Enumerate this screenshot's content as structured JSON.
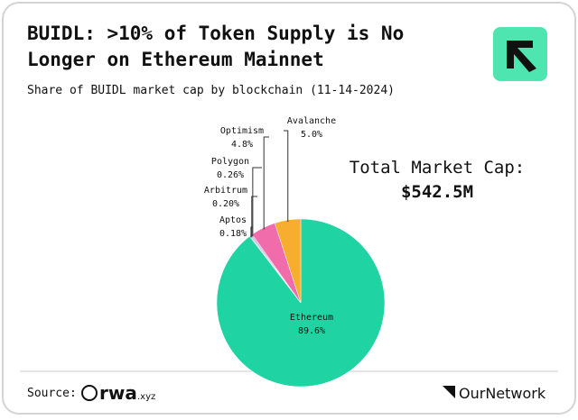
{
  "chart_data": {
    "type": "pie",
    "title_lines": [
      "BUIDL: >10% of Token Supply is No",
      "Longer on Ethereum Mainnet"
    ],
    "subtitle": "Share of BUIDL market cap by blockchain (11-14-2024)",
    "categories": [
      "Ethereum",
      "Aptos",
      "Arbitrum",
      "Polygon",
      "Optimism",
      "Avalanche"
    ],
    "values": [
      89.6,
      0.18,
      0.2,
      0.26,
      4.8,
      5.0
    ],
    "value_labels": [
      "89.6%",
      "0.18%",
      "0.20%",
      "0.26%",
      "4.8%",
      "5.0%"
    ],
    "colors": [
      "#20d3a2",
      "#b9c4cc",
      "#9fb0bd",
      "#c9a6e6",
      "#f06cab",
      "#f7ad2d"
    ],
    "annotation": {
      "label": "Total Market Cap:",
      "value": "$542.5M"
    },
    "source_label": "Source:",
    "source_logo": "rwa",
    "source_logo_suffix": ".xyz",
    "brand": "OurNetwork"
  }
}
